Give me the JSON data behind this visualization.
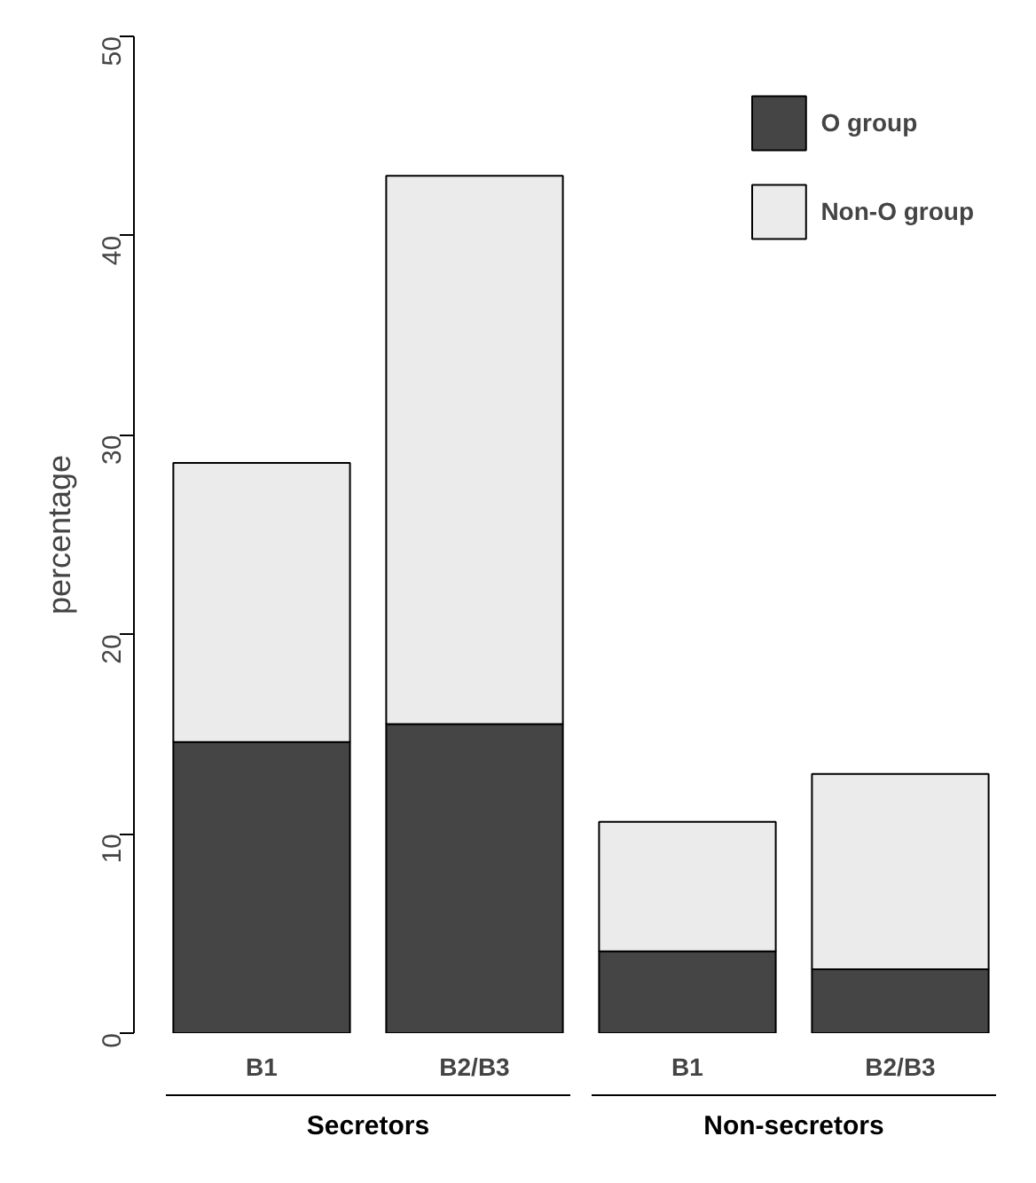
{
  "chart_data": {
    "type": "bar",
    "stacked": true,
    "ylabel": "percentage",
    "categories": [
      "B1",
      "B2/B3",
      "B1",
      "B2/B3"
    ],
    "series": [
      {
        "name": "O group",
        "color": "#454545",
        "values": [
          14.6,
          15.5,
          4.1,
          3.2
        ]
      },
      {
        "name": "Non-O group",
        "color": "#ebebeb",
        "values": [
          14.0,
          27.5,
          6.5,
          9.8
        ]
      }
    ],
    "ylim": [
      0,
      50
    ],
    "yticks": [
      0,
      10,
      20,
      30,
      40,
      50
    ],
    "grid": false,
    "legend": "top right",
    "annotations": [
      "Secretors",
      "Non-secretors"
    ]
  }
}
